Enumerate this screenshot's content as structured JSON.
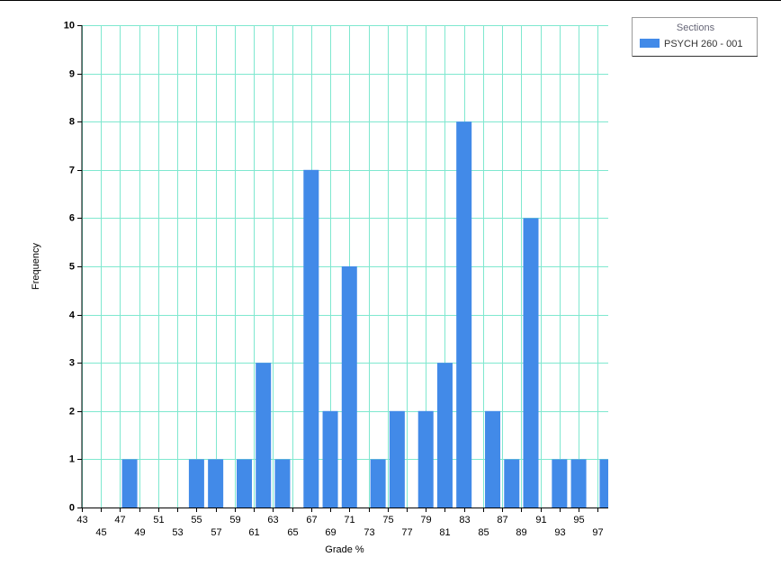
{
  "chart_data": {
    "type": "bar",
    "x_label": "Grade %",
    "y_label": "Frequency",
    "x": [
      48,
      55,
      57,
      60,
      62,
      64,
      67,
      69,
      71,
      74,
      76,
      79,
      81,
      83,
      86,
      88,
      90,
      93,
      95,
      98
    ],
    "series": [
      {
        "name": "PSYCH 260 - 001",
        "color": "#428ae8",
        "values": [
          1,
          1,
          1,
          1,
          3,
          1,
          7,
          2,
          5,
          1,
          2,
          2,
          3,
          8,
          2,
          1,
          6,
          1,
          1,
          1
        ]
      }
    ],
    "legend_title": "Sections",
    "legend_position": "top-right",
    "xlim": [
      43,
      98.1
    ],
    "xticks": [
      43,
      45,
      47,
      49,
      51,
      53,
      55,
      57,
      59,
      61,
      63,
      65,
      67,
      69,
      71,
      73,
      75,
      77,
      79,
      81,
      83,
      85,
      87,
      89,
      91,
      93,
      95,
      97
    ],
    "ylim": [
      0,
      10
    ],
    "yticks": [
      0,
      1,
      2,
      3,
      4,
      5,
      6,
      7,
      8,
      9,
      10
    ],
    "grid": true
  }
}
